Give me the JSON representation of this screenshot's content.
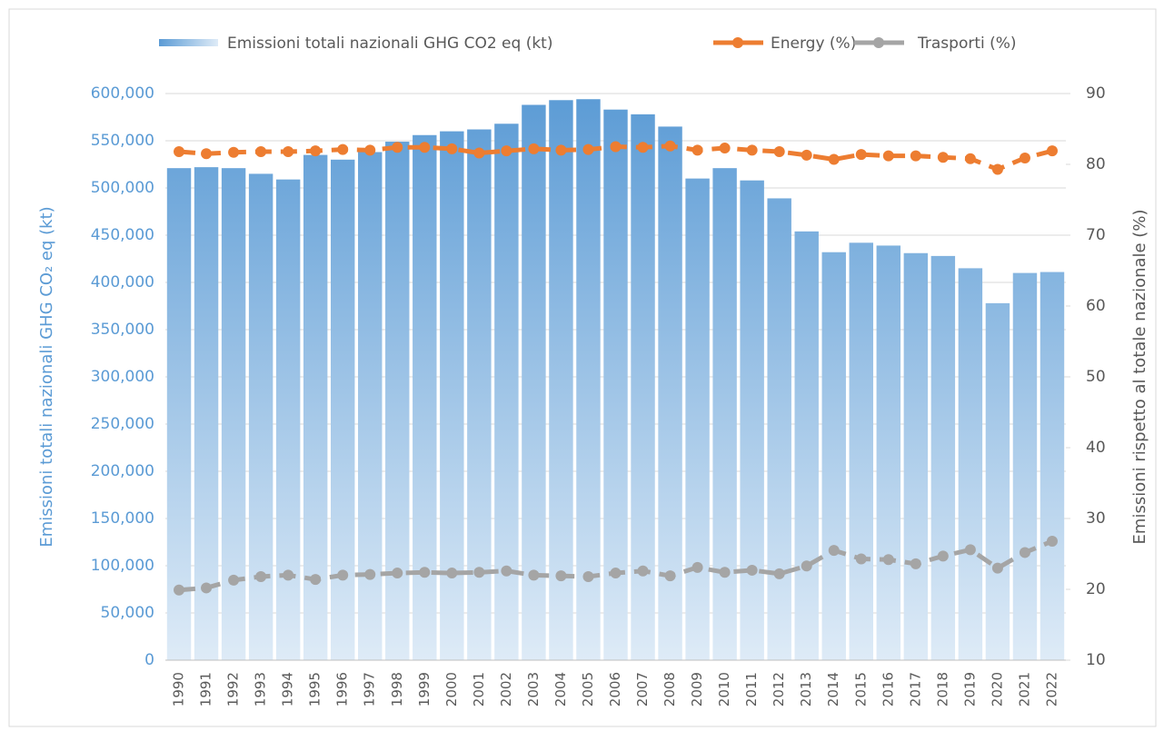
{
  "chart_data": {
    "type": "bar-line",
    "y_label": "Emissioni totali nazionali GHG CO₂ eq (kt)",
    "y2_label": "Emissioni rispetto al totale nazionale (%)",
    "categories": [
      "1990",
      "1991",
      "1992",
      "1993",
      "1994",
      "1995",
      "1996",
      "1997",
      "1998",
      "1999",
      "2000",
      "2001",
      "2002",
      "2003",
      "2004",
      "2005",
      "2006",
      "2007",
      "2008",
      "2009",
      "2010",
      "2011",
      "2012",
      "2013",
      "2014",
      "2015",
      "2016",
      "2017",
      "2018",
      "2019",
      "2020",
      "2021",
      "2022"
    ],
    "series": [
      {
        "name": "Emissioni totali nazionali GHG CO2 eq (kt)",
        "type": "bar",
        "color": "#5b9bd5",
        "values": [
          521000,
          522000,
          521000,
          515000,
          509000,
          535000,
          530000,
          538000,
          549000,
          556000,
          560000,
          562000,
          568000,
          588000,
          593000,
          594000,
          583000,
          578000,
          565000,
          510000,
          521000,
          508000,
          489000,
          454000,
          432000,
          442000,
          439000,
          431000,
          428000,
          415000,
          378000,
          410000,
          411000
        ]
      },
      {
        "name": "Energy (%)",
        "type": "line",
        "axis": "y2",
        "color": "#ed7d31",
        "values": [
          81.8,
          81.5,
          81.7,
          81.8,
          81.8,
          81.9,
          82.1,
          82.0,
          82.4,
          82.4,
          82.2,
          81.6,
          81.9,
          82.2,
          82.0,
          82.1,
          82.5,
          82.4,
          82.6,
          82.0,
          82.3,
          82.0,
          81.8,
          81.3,
          80.7,
          81.4,
          81.2,
          81.2,
          81.0,
          80.8,
          79.3,
          80.9,
          81.9
        ]
      },
      {
        "name": "Trasporti (%)",
        "type": "line",
        "axis": "y2",
        "color": "#a5a5a5",
        "values": [
          19.9,
          20.2,
          21.3,
          21.8,
          22.0,
          21.4,
          22.0,
          22.1,
          22.3,
          22.4,
          22.3,
          22.4,
          22.6,
          22.0,
          21.9,
          21.8,
          22.3,
          22.6,
          21.9,
          23.1,
          22.4,
          22.7,
          22.2,
          23.3,
          25.5,
          24.3,
          24.2,
          23.6,
          24.7,
          25.6,
          23.0,
          25.2,
          26.8
        ]
      }
    ],
    "ylim": [
      0,
      600000
    ],
    "yticks": [
      0,
      {
        "value": 50000,
        "label": "50,000"
      },
      {
        "value": 100000,
        "label": "100,000"
      },
      {
        "value": 150000,
        "label": "150,000"
      },
      {
        "value": 200000,
        "label": "200,000"
      },
      {
        "value": 250000,
        "label": "250,000"
      },
      {
        "value": 300000,
        "label": "300,000"
      },
      {
        "value": 350000,
        "label": "350,000"
      },
      {
        "value": 400000,
        "label": "400,000"
      },
      {
        "value": 450000,
        "label": "450,000"
      },
      {
        "value": 500000,
        "label": "500,000"
      },
      {
        "value": 550000,
        "label": "550,000"
      },
      {
        "value": 600000,
        "label": "600,000"
      }
    ],
    "y2lim": [
      10,
      90
    ],
    "y2ticks": [
      10,
      20,
      30,
      40,
      50,
      60,
      70,
      80,
      90
    ],
    "grid": true
  }
}
